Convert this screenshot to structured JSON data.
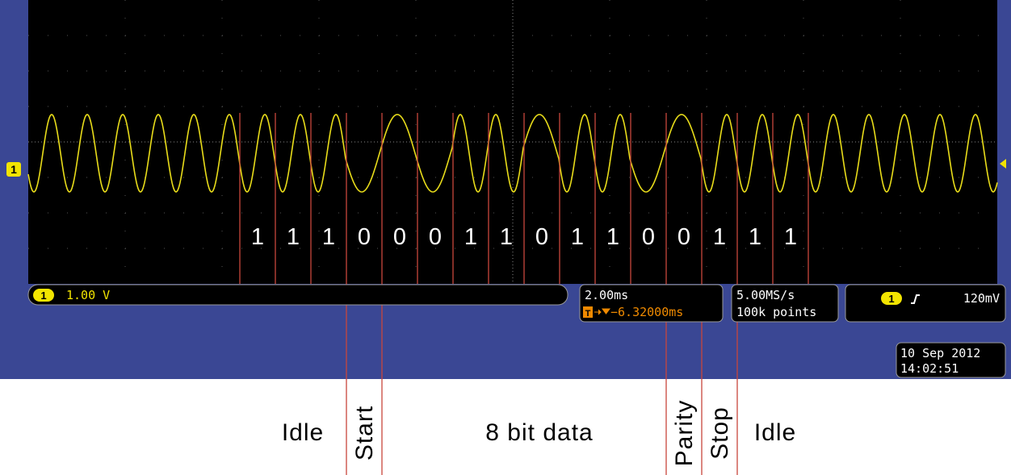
{
  "screen": {
    "channel_marker": "1",
    "status": {
      "ch_badge": "1",
      "scale": "1.00 V",
      "timebase": "2.00ms",
      "trigger_pos": "−6.32000ms",
      "sample_rate": "5.00MS/s",
      "record_length": "100k points",
      "trigger_badge": "1",
      "trigger_level": "120mV",
      "date": "10 Sep 2012",
      "time": "14:02:51"
    }
  },
  "bits": [
    "1",
    "1",
    "1",
    "0",
    "0",
    "0",
    "1",
    "1",
    "0",
    "1",
    "1",
    "0",
    "0",
    "1",
    "1",
    "1"
  ],
  "annotations": {
    "idle_before": "Idle",
    "start": "Start",
    "data": "8 bit data",
    "parity": "Parity",
    "stop": "Stop",
    "idle_after": "Idle"
  }
}
